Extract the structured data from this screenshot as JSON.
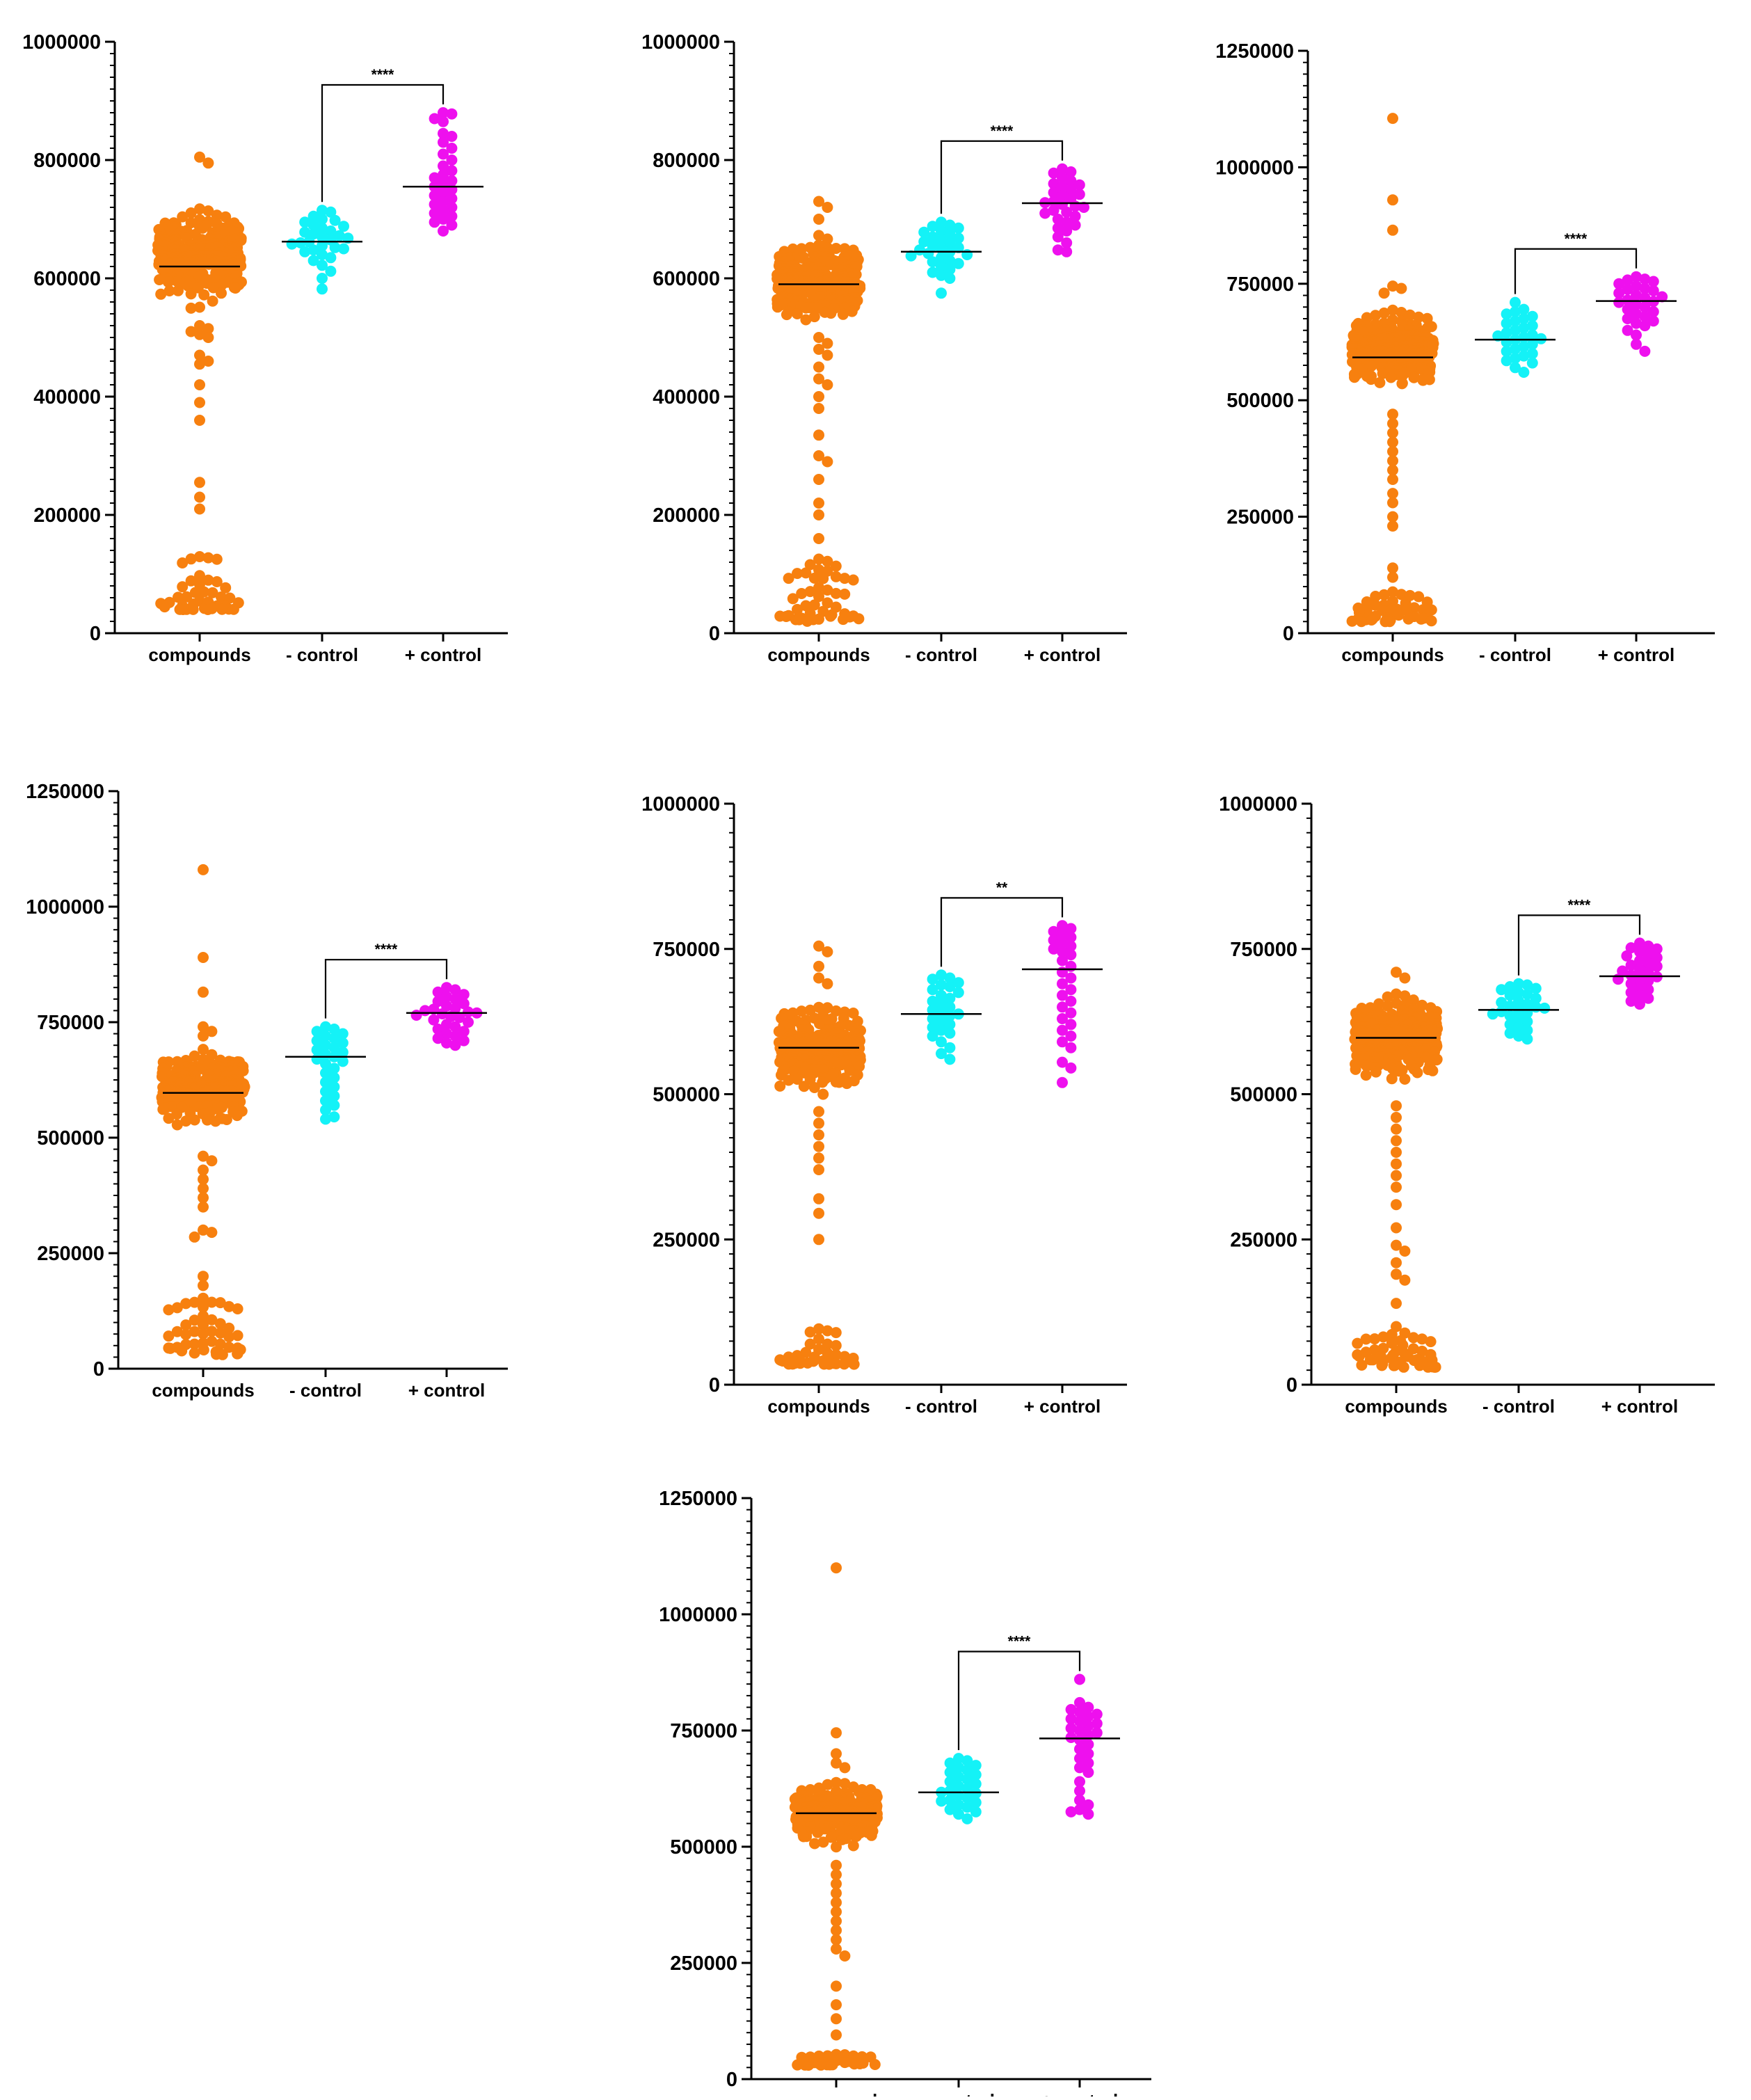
{
  "colors": {
    "compounds": "#f7800f",
    "neg_control": "#14f2f7",
    "pos_control": "#ee10ee",
    "axis": "#000000"
  },
  "chart_data": [
    {
      "type": "scatter",
      "categories": [
        "compounds",
        "- control",
        "+ control"
      ],
      "yticks": [
        "0",
        "200000",
        "400000",
        "600000",
        "800000",
        "1000000"
      ],
      "ylim": [
        0,
        1000000
      ],
      "significance": {
        "label": "****",
        "between": [
          "- control",
          "+ control"
        ]
      },
      "series": [
        {
          "category": "compounds",
          "mean": 620000,
          "bulk_range": [
            540000,
            735000
          ],
          "bulk_count": 300,
          "low_range": [
            40000,
            130000
          ],
          "low_count": 40,
          "extra": [
            805000,
            795000,
            255000,
            230000,
            210000,
            360000,
            390000,
            420000,
            455000,
            460000,
            470000,
            500000,
            505000,
            510000,
            515000,
            520000
          ]
        },
        {
          "category": "- control",
          "mean": 662000,
          "values": [
            715000,
            712000,
            705000,
            700000,
            698000,
            695000,
            690000,
            688000,
            685000,
            680000,
            678000,
            675000,
            672000,
            670000,
            668000,
            665000,
            662000,
            660000,
            658000,
            655000,
            652000,
            650000,
            648000,
            645000,
            640000,
            635000,
            630000,
            622000,
            612000,
            600000,
            582000
          ]
        },
        {
          "category": "+ control",
          "mean": 755000,
          "values": [
            880000,
            878000,
            870000,
            865000,
            845000,
            840000,
            830000,
            820000,
            810000,
            800000,
            790000,
            782000,
            775000,
            770000,
            765000,
            760000,
            755000,
            750000,
            745000,
            740000,
            735000,
            730000,
            725000,
            720000,
            715000,
            710000,
            705000,
            700000,
            695000,
            690000,
            680000
          ]
        }
      ]
    },
    {
      "type": "scatter",
      "categories": [
        "compounds",
        "- control",
        "+ control"
      ],
      "yticks": [
        "0",
        "200000",
        "400000",
        "600000",
        "800000",
        "1000000"
      ],
      "ylim": [
        0,
        1000000
      ],
      "significance": {
        "label": "****",
        "between": [
          "- control",
          "+ control"
        ]
      },
      "series": [
        {
          "category": "compounds",
          "mean": 590000,
          "bulk_range": [
            510000,
            680000
          ],
          "bulk_count": 300,
          "low_range": [
            20000,
            130000
          ],
          "low_count": 45,
          "extra": [
            730000,
            720000,
            700000,
            430000,
            420000,
            400000,
            380000,
            335000,
            300000,
            290000,
            260000,
            220000,
            200000,
            160000,
            450000,
            470000,
            480000,
            490000,
            500000
          ]
        },
        {
          "category": "- control",
          "mean": 645000,
          "values": [
            695000,
            690000,
            688000,
            685000,
            680000,
            678000,
            675000,
            670000,
            668000,
            665000,
            662000,
            660000,
            655000,
            652000,
            650000,
            648000,
            645000,
            642000,
            640000,
            638000,
            635000,
            630000,
            628000,
            625000,
            620000,
            615000,
            610000,
            605000,
            600000,
            575000
          ]
        },
        {
          "category": "+ control",
          "mean": 727000,
          "values": [
            785000,
            780000,
            778000,
            770000,
            765000,
            760000,
            758000,
            755000,
            750000,
            745000,
            742000,
            740000,
            735000,
            730000,
            728000,
            725000,
            722000,
            720000,
            715000,
            712000,
            710000,
            705000,
            700000,
            695000,
            690000,
            685000,
            680000,
            670000,
            660000,
            648000,
            645000
          ]
        }
      ]
    },
    {
      "type": "scatter",
      "categories": [
        "compounds",
        "- control",
        "+ control"
      ],
      "yticks": [
        "0",
        "250000",
        "500000",
        "750000",
        "1000000",
        "1250000"
      ],
      "ylim": [
        0,
        1250000
      ],
      "significance": {
        "label": "****",
        "between": [
          "- control",
          "+ control"
        ]
      },
      "series": [
        {
          "category": "compounds",
          "mean": 592000,
          "bulk_range": [
            510000,
            705000
          ],
          "bulk_count": 300,
          "low_range": [
            25000,
            90000
          ],
          "low_count": 45,
          "extra": [
            1105000,
            930000,
            865000,
            745000,
            740000,
            730000,
            470000,
            450000,
            430000,
            410000,
            390000,
            370000,
            350000,
            330000,
            300000,
            280000,
            250000,
            230000,
            140000,
            120000
          ]
        },
        {
          "category": "- control",
          "mean": 630000,
          "values": [
            710000,
            695000,
            690000,
            685000,
            680000,
            675000,
            670000,
            665000,
            660000,
            655000,
            650000,
            645000,
            640000,
            638000,
            635000,
            632000,
            630000,
            625000,
            620000,
            615000,
            610000,
            605000,
            600000,
            595000,
            590000,
            585000,
            580000,
            570000,
            560000
          ]
        },
        {
          "category": "+ control",
          "mean": 713000,
          "values": [
            765000,
            760000,
            758000,
            755000,
            750000,
            745000,
            740000,
            738000,
            735000,
            730000,
            725000,
            722000,
            720000,
            715000,
            712000,
            710000,
            705000,
            700000,
            695000,
            690000,
            685000,
            680000,
            675000,
            670000,
            665000,
            660000,
            650000,
            640000,
            620000,
            605000
          ]
        }
      ]
    },
    {
      "type": "scatter",
      "categories": [
        "compounds",
        "- control",
        "+ control"
      ],
      "yticks": [
        "0",
        "250000",
        "500000",
        "750000",
        "1000000",
        "1250000"
      ],
      "ylim": [
        0,
        1250000
      ],
      "significance": {
        "label": "****",
        "between": [
          "- control",
          "+ control"
        ]
      },
      "series": [
        {
          "category": "compounds",
          "mean": 597000,
          "bulk_range": [
            510000,
            700000
          ],
          "bulk_count": 300,
          "low_range": [
            30000,
            160000
          ],
          "low_count": 45,
          "extra": [
            1080000,
            890000,
            815000,
            740000,
            730000,
            720000,
            460000,
            450000,
            430000,
            410000,
            390000,
            370000,
            350000,
            300000,
            295000,
            285000,
            200000,
            180000
          ]
        },
        {
          "category": "- control",
          "mean": 675000,
          "values": [
            740000,
            735000,
            730000,
            725000,
            720000,
            715000,
            710000,
            705000,
            700000,
            695000,
            690000,
            685000,
            680000,
            675000,
            670000,
            665000,
            660000,
            650000,
            640000,
            630000,
            620000,
            610000,
            600000,
            590000,
            580000,
            570000,
            560000,
            545000,
            540000
          ]
        },
        {
          "category": "+ control",
          "mean": 770000,
          "values": [
            825000,
            820000,
            815000,
            810000,
            805000,
            800000,
            795000,
            790000,
            785000,
            780000,
            778000,
            775000,
            772000,
            770000,
            768000,
            765000,
            762000,
            760000,
            755000,
            750000,
            745000,
            740000,
            735000,
            730000,
            725000,
            720000,
            715000,
            710000,
            705000,
            700000
          ]
        }
      ]
    },
    {
      "type": "scatter",
      "categories": [
        "compounds",
        "- control",
        "+ control"
      ],
      "yticks": [
        "0",
        "250000",
        "500000",
        "750000",
        "1000000"
      ],
      "ylim": [
        0,
        1000000
      ],
      "significance": {
        "label": "**",
        "between": [
          "- control",
          "+ control"
        ]
      },
      "series": [
        {
          "category": "compounds",
          "mean": 580000,
          "bulk_range": [
            490000,
            670000
          ],
          "bulk_count": 300,
          "low_range": [
            35000,
            100000
          ],
          "low_count": 40,
          "extra": [
            755000,
            745000,
            720000,
            700000,
            690000,
            470000,
            450000,
            430000,
            410000,
            390000,
            370000,
            320000,
            295000,
            250000
          ]
        },
        {
          "category": "- control",
          "mean": 638000,
          "values": [
            705000,
            700000,
            698000,
            692000,
            688000,
            685000,
            680000,
            675000,
            670000,
            665000,
            660000,
            655000,
            650000,
            645000,
            640000,
            638000,
            635000,
            630000,
            625000,
            620000,
            615000,
            610000,
            605000,
            600000,
            590000,
            580000,
            570000,
            560000
          ]
        },
        {
          "category": "+ control",
          "mean": 715000,
          "values": [
            790000,
            785000,
            780000,
            775000,
            770000,
            765000,
            760000,
            755000,
            750000,
            745000,
            740000,
            730000,
            720000,
            710000,
            700000,
            690000,
            680000,
            670000,
            660000,
            650000,
            640000,
            630000,
            620000,
            610000,
            600000,
            590000,
            580000,
            555000,
            545000,
            520000
          ]
        }
      ]
    },
    {
      "type": "scatter",
      "categories": [
        "compounds",
        "- control",
        "+ control"
      ],
      "yticks": [
        "0",
        "250000",
        "500000",
        "750000",
        "1000000"
      ],
      "ylim": [
        0,
        1000000
      ],
      "significance": {
        "label": "****",
        "between": [
          "- control",
          "+ control"
        ]
      },
      "series": [
        {
          "category": "compounds",
          "mean": 597000,
          "bulk_range": [
            510000,
            690000
          ],
          "bulk_count": 300,
          "low_range": [
            30000,
            90000
          ],
          "low_count": 45,
          "extra": [
            710000,
            700000,
            480000,
            460000,
            440000,
            420000,
            400000,
            380000,
            360000,
            340000,
            310000,
            270000,
            240000,
            230000,
            210000,
            190000,
            180000,
            140000,
            100000
          ]
        },
        {
          "category": "- control",
          "mean": 645000,
          "values": [
            690000,
            688000,
            685000,
            682000,
            680000,
            675000,
            672000,
            670000,
            665000,
            660000,
            658000,
            655000,
            652000,
            650000,
            648000,
            645000,
            642000,
            640000,
            638000,
            635000,
            630000,
            625000,
            620000,
            615000,
            610000,
            605000,
            600000,
            595000
          ]
        },
        {
          "category": "+ control",
          "mean": 703000,
          "values": [
            760000,
            755000,
            752000,
            750000,
            745000,
            740000,
            738000,
            735000,
            730000,
            725000,
            722000,
            720000,
            715000,
            712000,
            710000,
            705000,
            702000,
            700000,
            698000,
            695000,
            690000,
            685000,
            680000,
            675000,
            670000,
            665000,
            660000,
            655000
          ]
        }
      ]
    },
    {
      "type": "scatter",
      "categories": [
        "compounds",
        "- control",
        "+ control"
      ],
      "yticks": [
        "0",
        "250000",
        "500000",
        "750000",
        "1000000",
        "1250000"
      ],
      "ylim": [
        0,
        1250000
      ],
      "significance": {
        "label": "****",
        "between": [
          "- control",
          "+ control"
        ]
      },
      "series": [
        {
          "category": "compounds",
          "mean": 572000,
          "bulk_range": [
            490000,
            650000
          ],
          "bulk_count": 300,
          "low_range": [
            30000,
            55000
          ],
          "low_count": 35,
          "extra": [
            1100000,
            745000,
            700000,
            680000,
            670000,
            460000,
            440000,
            420000,
            400000,
            380000,
            360000,
            340000,
            320000,
            300000,
            280000,
            265000,
            200000,
            160000,
            130000,
            95000
          ]
        },
        {
          "category": "- control",
          "mean": 617000,
          "values": [
            690000,
            685000,
            680000,
            675000,
            670000,
            665000,
            660000,
            655000,
            650000,
            645000,
            640000,
            635000,
            630000,
            625000,
            620000,
            617000,
            615000,
            610000,
            605000,
            600000,
            598000,
            595000,
            590000,
            585000,
            580000,
            575000,
            570000,
            560000
          ]
        },
        {
          "category": "+ control",
          "mean": 733000,
          "values": [
            860000,
            810000,
            800000,
            795000,
            790000,
            785000,
            780000,
            775000,
            770000,
            765000,
            760000,
            755000,
            750000,
            745000,
            740000,
            735000,
            730000,
            720000,
            710000,
            700000,
            690000,
            680000,
            670000,
            660000,
            640000,
            620000,
            600000,
            590000,
            580000,
            575000,
            570000
          ]
        }
      ]
    }
  ]
}
